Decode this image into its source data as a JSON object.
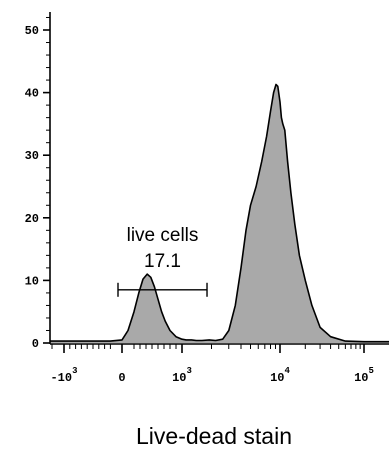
{
  "chart_data": {
    "type": "area",
    "title": "",
    "xlabel": "Live-dead stain",
    "ylabel": "",
    "ylim": [
      0,
      52
    ],
    "x_scale": "biexponential",
    "grid": false,
    "legend": "none",
    "y_ticks": [
      {
        "value": 0,
        "label": "0"
      },
      {
        "value": 10,
        "label": "10"
      },
      {
        "value": 20,
        "label": "20"
      },
      {
        "value": 30,
        "label": "30"
      },
      {
        "value": 40,
        "label": "40"
      },
      {
        "value": 50,
        "label": "50"
      }
    ],
    "x_ticks": [
      {
        "value": -1000,
        "base": "-10",
        "exp": "3"
      },
      {
        "value": 0,
        "base": "0",
        "exp": ""
      },
      {
        "value": 1000,
        "base": "10",
        "exp": "3"
      },
      {
        "value": 10000,
        "base": "10",
        "exp": "4"
      },
      {
        "value": 100000,
        "base": "10",
        "exp": "5"
      }
    ],
    "series": [
      {
        "fill": "#a9a9a9",
        "stroke": "#000000",
        "x": [
          -3000,
          -1000,
          -500,
          -200,
          0,
          100,
          200,
          280,
          350,
          420,
          480,
          540,
          600,
          660,
          720,
          800,
          900,
          1000,
          1100,
          1250,
          1400,
          1600,
          1900,
          2200,
          2600,
          3000,
          3500,
          4000,
          4500,
          5000,
          5700,
          6500,
          7300,
          8000,
          8600,
          9100,
          9500,
          10000,
          10400,
          10800,
          11400,
          12300,
          13500,
          15000,
          17000,
          20000,
          24000,
          30000,
          40000,
          60000,
          100000,
          200000
        ],
        "y": [
          0.3,
          0.3,
          0.3,
          0.3,
          0.5,
          2,
          5,
          8,
          10.2,
          11,
          10.5,
          9,
          7,
          5,
          3.5,
          2,
          1,
          0.6,
          0.5,
          0.5,
          0.4,
          0.4,
          0.5,
          0.4,
          0.6,
          2,
          6,
          12,
          18,
          22,
          25,
          29,
          33,
          37,
          40,
          41.3,
          41,
          38.5,
          36,
          35,
          34,
          29,
          24,
          19,
          14,
          10,
          6,
          2.5,
          1,
          0.3,
          0.2,
          0.2
        ]
      }
    ],
    "gates": [
      {
        "name": "live cells",
        "value": "17.1",
        "x_range": [
          0,
          1800
        ],
        "y": 8.5
      }
    ]
  }
}
